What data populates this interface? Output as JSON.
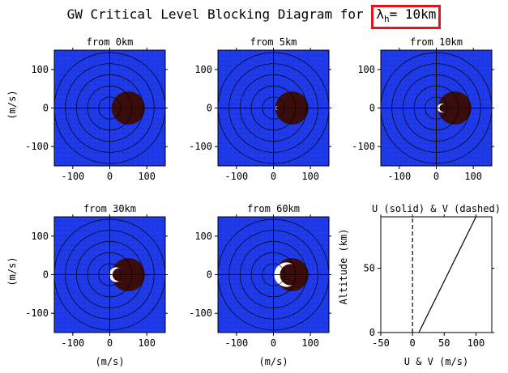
{
  "figure": {
    "title_prefix": "GW Critical Level Blocking Diagram for ",
    "title_lambda": "λ",
    "title_lambda_sub": "h",
    "title_value": "= 10km",
    "highlight_color": "#e8141b"
  },
  "colors": {
    "background_field": "#1f3ae8",
    "blocked_region": "#3a0d0d",
    "grid_line": "#000000",
    "highlight_fill": "#ffffff"
  },
  "chart_data": [
    {
      "type": "heatmap",
      "title": "from  0km",
      "ylabel": "(m/s)",
      "xlabel": "",
      "xlim": [
        -150,
        150
      ],
      "ylim": [
        -150,
        150
      ],
      "x_ticks": [
        -100,
        0,
        100
      ],
      "y_ticks": [
        -100,
        0,
        100
      ],
      "rings": [
        30,
        60,
        90,
        120,
        150
      ],
      "blocked_disk": {
        "center": [
          50,
          0
        ],
        "radius": 45
      },
      "highlight": null
    },
    {
      "type": "heatmap",
      "title": "from  5km",
      "ylabel": "",
      "xlabel": "",
      "xlim": [
        -150,
        150
      ],
      "ylim": [
        -150,
        150
      ],
      "x_ticks": [
        -100,
        0,
        100
      ],
      "y_ticks": [
        -100,
        0,
        100
      ],
      "rings": [
        30,
        60,
        90,
        120,
        150
      ],
      "blocked_disk": {
        "center": [
          50,
          0
        ],
        "radius": 45
      },
      "highlight": {
        "kind": "sliver",
        "center": [
          10,
          0
        ],
        "radius": 5
      }
    },
    {
      "type": "heatmap",
      "title": "from 10km",
      "ylabel": "",
      "xlabel": "",
      "xlim": [
        -150,
        150
      ],
      "ylim": [
        -150,
        150
      ],
      "x_ticks": [
        -100,
        0,
        100
      ],
      "y_ticks": [
        -100,
        0,
        100
      ],
      "rings": [
        30,
        60,
        90,
        120,
        150
      ],
      "blocked_disk": {
        "center": [
          50,
          0
        ],
        "radius": 45
      },
      "highlight": {
        "kind": "crescent",
        "center": [
          15,
          0
        ],
        "radius": 12
      }
    },
    {
      "type": "heatmap",
      "title": "from 30km",
      "ylabel": "(m/s)",
      "xlabel": "(m/s)",
      "xlim": [
        -150,
        150
      ],
      "ylim": [
        -150,
        150
      ],
      "x_ticks": [
        -100,
        0,
        100
      ],
      "y_ticks": [
        -100,
        0,
        100
      ],
      "rings": [
        30,
        60,
        90,
        120,
        150
      ],
      "blocked_disk": {
        "center": [
          50,
          0
        ],
        "radius": 45
      },
      "highlight": {
        "kind": "crescent",
        "center": [
          18,
          0
        ],
        "radius": 20
      }
    },
    {
      "type": "heatmap",
      "title": "from 60km",
      "ylabel": "",
      "xlabel": "(m/s)",
      "xlim": [
        -150,
        150
      ],
      "ylim": [
        -150,
        150
      ],
      "x_ticks": [
        -100,
        0,
        100
      ],
      "y_ticks": [
        -100,
        0,
        100
      ],
      "rings": [
        30,
        60,
        90,
        120,
        150
      ],
      "blocked_disk": {
        "center": [
          50,
          0
        ],
        "radius": 45
      },
      "highlight": {
        "kind": "crescent",
        "center": [
          35,
          0
        ],
        "radius": 33
      }
    },
    {
      "type": "line",
      "title": "U (solid) & V (dashed)",
      "xlabel": "U & V (m/s)",
      "ylabel": "Altitude (km)",
      "xlim": [
        -50,
        125
      ],
      "ylim": [
        0,
        90
      ],
      "x_ticks": [
        -50,
        0,
        50,
        100
      ],
      "y_ticks": [
        0,
        50
      ],
      "series": [
        {
          "name": "U",
          "style": "solid",
          "x": [
            10,
            100
          ],
          "y": [
            0,
            90
          ]
        },
        {
          "name": "V",
          "style": "dashed",
          "x": [
            0,
            0
          ],
          "y": [
            0,
            90
          ]
        }
      ]
    }
  ]
}
